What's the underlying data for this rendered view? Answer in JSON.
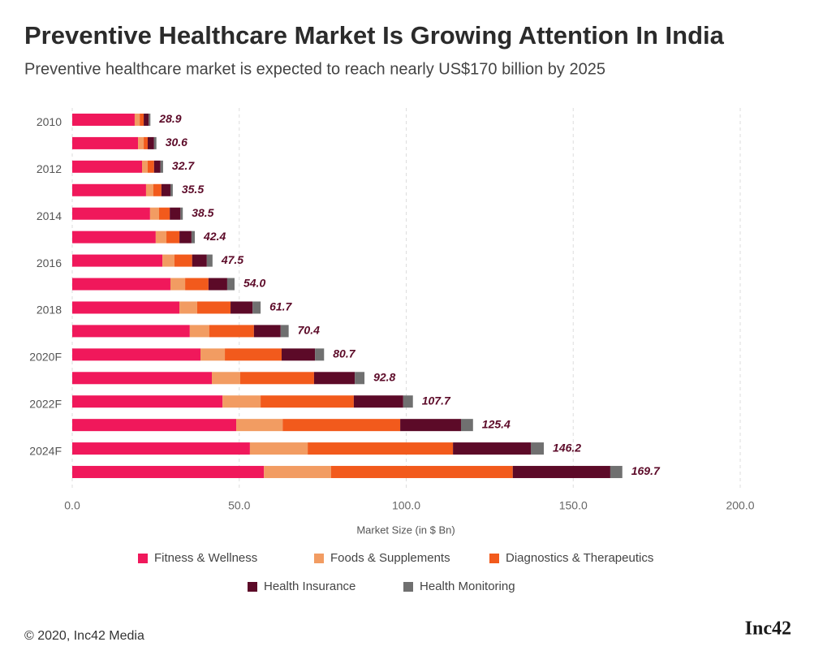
{
  "chart_data": {
    "type": "stacked-barh",
    "title": "Preventive Healthcare Market Is Growing Attention In India",
    "subtitle": "Preventive healthcare market is expected to reach nearly US$170 billion by 2025",
    "x_label": "Market Size (in $ Bn)",
    "categories": [
      "2010",
      null,
      "2012",
      null,
      "2014",
      null,
      "2016",
      null,
      "2018",
      null,
      "2020F",
      null,
      "2022F",
      null,
      "2024F",
      null
    ],
    "series": [
      {
        "name": "Fitness & Wellness",
        "color": "#f0185b",
        "values": [
          18.7,
          19.7,
          20.9,
          22.1,
          23.3,
          25.0,
          27.0,
          29.4,
          32.1,
          35.2,
          38.4,
          41.8,
          45.0,
          49.1,
          53.2,
          57.4
        ]
      },
      {
        "name": "Foods & Supplements",
        "color": "#f29c62",
        "values": [
          1.5,
          1.7,
          1.7,
          2.2,
          2.7,
          3.2,
          3.6,
          4.4,
          5.3,
          5.8,
          7.3,
          8.5,
          11.4,
          13.9,
          17.3,
          20.1
        ]
      },
      {
        "name": "Diagnostics & Therapeutics",
        "color": "#f25a1c",
        "values": [
          1.2,
          1.2,
          1.9,
          2.4,
          3.2,
          3.9,
          5.3,
          7.0,
          10.0,
          13.4,
          17.0,
          22.1,
          27.9,
          35.2,
          43.5,
          54.4
        ]
      },
      {
        "name": "Health Insurance",
        "color": "#5c0a28",
        "values": [
          1.5,
          1.9,
          1.9,
          2.7,
          3.2,
          3.6,
          4.4,
          5.6,
          6.6,
          8.0,
          10.0,
          12.2,
          14.8,
          18.2,
          23.3,
          29.2
        ]
      },
      {
        "name": "Health Monitoring",
        "color": "#707070",
        "values": [
          0.5,
          0.7,
          0.8,
          0.7,
          0.7,
          1.0,
          1.7,
          2.2,
          2.4,
          2.4,
          2.7,
          2.9,
          2.9,
          3.6,
          3.9,
          3.6
        ]
      }
    ],
    "totals": {
      "values": [
        28.9,
        30.6,
        32.7,
        35.5,
        38.5,
        42.4,
        47.5,
        54.0,
        61.7,
        70.4,
        80.7,
        92.8,
        107.7,
        125.4,
        146.2,
        169.7
      ],
      "value_labels": [
        "28.9",
        "30.6",
        "32.7",
        "35.5",
        "38.5",
        "42.4",
        "47.5",
        "54.0",
        "61.7",
        "70.4",
        "80.7",
        "92.8",
        "107.7",
        "125.4",
        "146.2",
        "169.7"
      ]
    },
    "xlim": [
      0,
      200
    ],
    "xticks": [
      {
        "value": 0,
        "label": "0.0"
      },
      {
        "value": 50,
        "label": "50.0"
      },
      {
        "value": 100,
        "label": "100.0"
      },
      {
        "value": 150,
        "label": "150.0"
      },
      {
        "value": 200,
        "label": "200.0"
      }
    ],
    "grid": true,
    "legend": "bottom",
    "footer": "© 2020, Inc42 Media",
    "logo": "Inc42"
  }
}
